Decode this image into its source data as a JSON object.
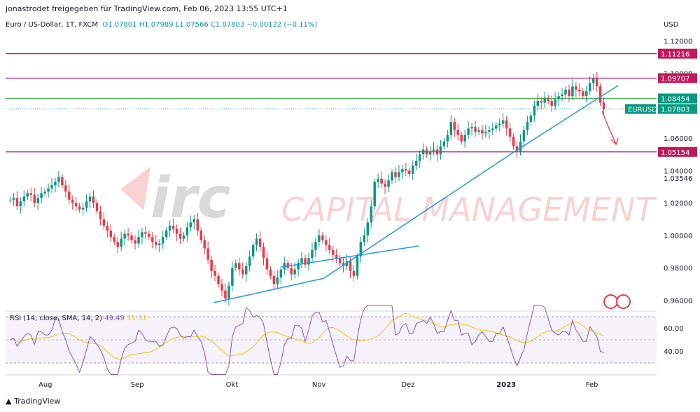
{
  "header": {
    "shared_by": "jonastrodet freigegeben für TradingView.com, Feb 06, 2023 13:55 UTC+1"
  },
  "legend": {
    "symbol": "Euro / US-Dollar, 1T, FXCM",
    "open": "O1.07801",
    "high": "H1.07989",
    "low": "L1.07566",
    "close": "C1.07803",
    "change": "−0.00122 (−0.11%)"
  },
  "currency": "USD",
  "watermark": {
    "logo_text": "irc",
    "text": "CAPITAL MANAGEMENT"
  },
  "rsi": {
    "label": "RSI (14, close, SMA, 14, 2)",
    "value1": "49.49",
    "value2": "55.51"
  },
  "footer": {
    "brand": "TradingView"
  },
  "colors": {
    "up": "#089981",
    "down": "#f23645",
    "level": "#c2185b",
    "support": "#4caf50",
    "trend": "#2196f3",
    "rsi": "#7e57c2",
    "rsi_ma": "#f7c600"
  },
  "chart_data": {
    "type": "candlestick",
    "y_axis": {
      "ticks": [
        "1.12000",
        "1.10000",
        "1.06000",
        "1.04000",
        "1.03546",
        "1.02000",
        "1.00000",
        "0.98000",
        "0.96000"
      ],
      "range": [
        0.955,
        1.128
      ]
    },
    "x_axis": {
      "ticks": [
        "Aug",
        "Sep",
        "Okt",
        "Nov",
        "Dez",
        "2023",
        "Feb"
      ]
    },
    "price_tags": [
      {
        "label": "1.11216",
        "value": 1.11216,
        "kind": "level"
      },
      {
        "label": "1.09707",
        "value": 1.09707,
        "kind": "level"
      },
      {
        "label": "1.08454",
        "value": 1.08454,
        "kind": "support"
      },
      {
        "label": "EURUSD",
        "value": 1.07803,
        "kind": "symbol"
      },
      {
        "label": "1.07803",
        "value": 1.07803,
        "kind": "last"
      },
      {
        "label": "1.05154",
        "value": 1.05154,
        "kind": "level"
      }
    ],
    "horizontal_levels": [
      1.11216,
      1.09707,
      1.08454,
      1.05154
    ],
    "trendlines": [
      {
        "from": [
          "Sep 27 2022",
          0.9585
        ],
        "to": [
          "Nov 03 2022",
          0.9735
        ]
      },
      {
        "from": [
          "Nov 03 2022",
          0.9735
        ],
        "to": [
          "Jan 06 2023",
          1.0515
        ]
      },
      {
        "from": [
          "Jan 06 2023",
          1.0515
        ],
        "to": [
          "Feb 10 2023",
          1.0925
        ]
      },
      {
        "from": [
          "Oct 20 2022",
          0.9805
        ],
        "to": [
          "Dec 05 2022",
          0.9935
        ]
      }
    ],
    "close_path": [
      1.022,
      1.023,
      1.018,
      1.021,
      1.024,
      1.026,
      1.025,
      1.02,
      1.023,
      1.026,
      1.027,
      1.029,
      1.031,
      1.033,
      1.036,
      1.031,
      1.027,
      1.022,
      1.02,
      1.018,
      1.016,
      1.017,
      1.021,
      1.024,
      1.02,
      1.015,
      1.01,
      1.006,
      1.003,
      0.999,
      0.996,
      0.993,
      0.998,
      1.001,
      1.0,
      0.997,
      0.995,
      0.999,
      1.002,
      1.001,
      0.999,
      0.996,
      0.994,
      0.995,
      0.999,
      1.003,
      1.006,
      1.004,
      1.001,
      0.998,
      1.0,
      1.005,
      1.008,
      1.01,
      1.003,
      0.997,
      0.992,
      0.985,
      0.978,
      0.975,
      0.97,
      0.966,
      0.961,
      0.969,
      0.98,
      0.983,
      0.979,
      0.976,
      0.981,
      0.987,
      0.994,
      0.998,
      0.993,
      0.986,
      0.979,
      0.975,
      0.97,
      0.974,
      0.979,
      0.983,
      0.98,
      0.976,
      0.979,
      0.983,
      0.986,
      0.982,
      0.986,
      0.991,
      0.996,
      1.0,
      0.997,
      0.994,
      0.991,
      0.988,
      0.986,
      0.983,
      0.981,
      0.984,
      0.978,
      0.975,
      0.987,
      0.996,
      1.0,
      1.008,
      1.018,
      1.033,
      1.035,
      1.032,
      1.03,
      1.034,
      1.039,
      1.036,
      1.039,
      1.041,
      1.04,
      1.038,
      1.043,
      1.046,
      1.05,
      1.053,
      1.05,
      1.052,
      1.053,
      1.05,
      1.055,
      1.058,
      1.062,
      1.07,
      1.065,
      1.062,
      1.058,
      1.062,
      1.066,
      1.067,
      1.064,
      1.065,
      1.063,
      1.064,
      1.065,
      1.066,
      1.068,
      1.069,
      1.071,
      1.066,
      1.061,
      1.055,
      1.052,
      1.058,
      1.065,
      1.07,
      1.074,
      1.08,
      1.083,
      1.082,
      1.085,
      1.083,
      1.08,
      1.084,
      1.086,
      1.087,
      1.09,
      1.086,
      1.092,
      1.09,
      1.089,
      1.086,
      1.089,
      1.094,
      1.097,
      1.092,
      1.082,
      1.078
    ]
  }
}
